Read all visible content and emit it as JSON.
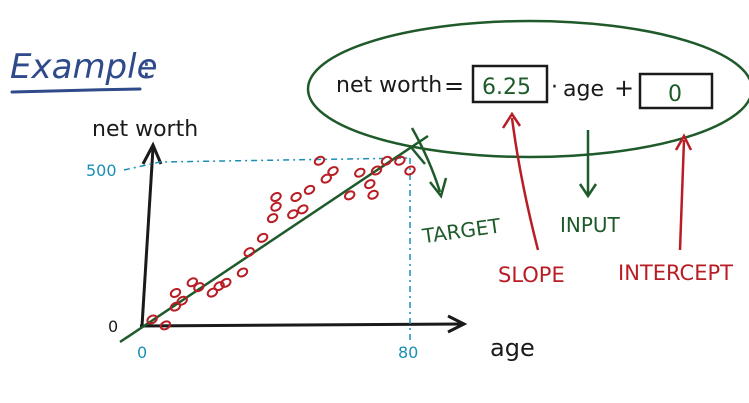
{
  "title": "Example",
  "title_suffix": ":",
  "equation": {
    "lhs": "net worth",
    "equals": "=",
    "slope_value": "6.25",
    "dot": "·",
    "input_var": "age",
    "plus": "+",
    "intercept_value": "0"
  },
  "labels": {
    "target": "TARGET",
    "input": "INPUT",
    "slope": "SLOPE",
    "intercept": "INTERCEPT"
  },
  "axes": {
    "y_label": "net worth",
    "x_label": "age",
    "y_tick_500": "500",
    "y_tick_0": "0",
    "x_tick_0": "0",
    "x_tick_80": "80"
  },
  "colors": {
    "ink_dark": "#1a1a1a",
    "title_blue": "#2f4a8a",
    "green": "#1f5a2a",
    "red": "#b81c24",
    "cyan": "#1a8fb3"
  },
  "chart_data": {
    "type": "scatter",
    "xlim": [
      0,
      80
    ],
    "ylim": [
      0,
      500
    ],
    "fit_line": {
      "slope": 6.25,
      "intercept": 0
    },
    "points": [
      {
        "x": 3,
        "y": 20
      },
      {
        "x": 7,
        "y": 2
      },
      {
        "x": 10,
        "y": 60
      },
      {
        "x": 10,
        "y": 102
      },
      {
        "x": 12,
        "y": 78
      },
      {
        "x": 15,
        "y": 135
      },
      {
        "x": 17,
        "y": 120
      },
      {
        "x": 21,
        "y": 103
      },
      {
        "x": 23,
        "y": 123
      },
      {
        "x": 25,
        "y": 133
      },
      {
        "x": 30,
        "y": 165
      },
      {
        "x": 32,
        "y": 228
      },
      {
        "x": 36,
        "y": 272
      },
      {
        "x": 39,
        "y": 333
      },
      {
        "x": 40,
        "y": 368
      },
      {
        "x": 40,
        "y": 398
      },
      {
        "x": 45,
        "y": 345
      },
      {
        "x": 46,
        "y": 398
      },
      {
        "x": 48,
        "y": 360
      },
      {
        "x": 50,
        "y": 420
      },
      {
        "x": 53,
        "y": 510
      },
      {
        "x": 55,
        "y": 455
      },
      {
        "x": 57,
        "y": 478
      },
      {
        "x": 62,
        "y": 403
      },
      {
        "x": 65,
        "y": 473
      },
      {
        "x": 68,
        "y": 438
      },
      {
        "x": 69,
        "y": 405
      },
      {
        "x": 70,
        "y": 480
      },
      {
        "x": 73,
        "y": 510
      },
      {
        "x": 77,
        "y": 510
      },
      {
        "x": 80,
        "y": 480
      }
    ]
  }
}
